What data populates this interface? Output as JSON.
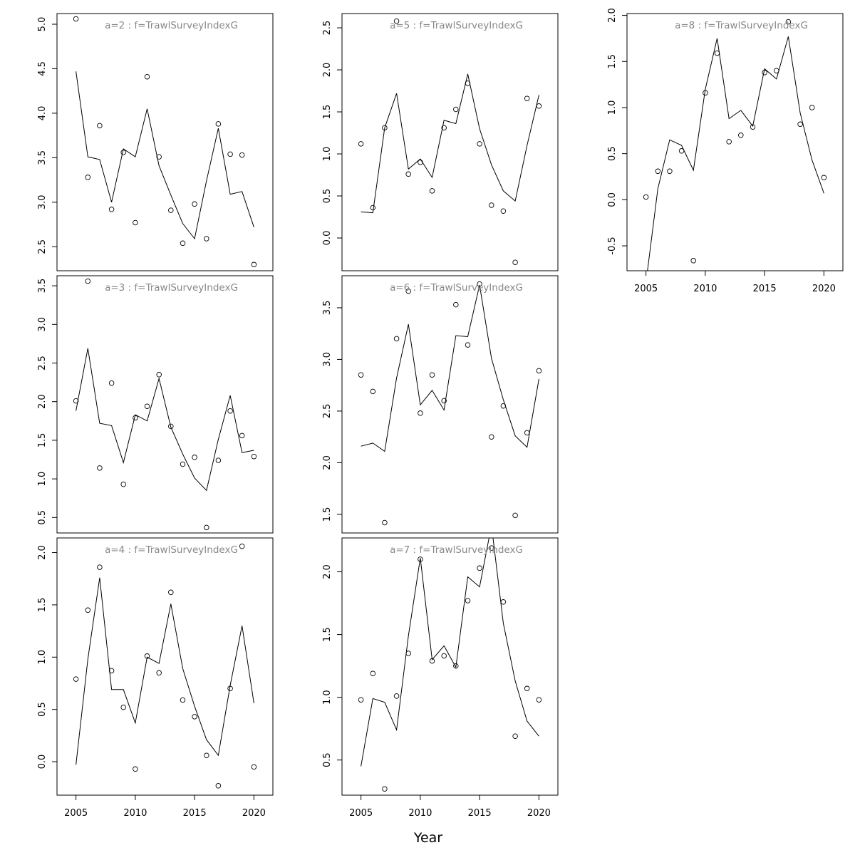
{
  "chart_data": {
    "type": "scatter",
    "xlabel": "Year",
    "xlim": [
      2003.4,
      2021.6
    ],
    "xticks": [
      2005,
      2010,
      2015,
      2020
    ],
    "years": [
      2005,
      2006,
      2007,
      2008,
      2009,
      2010,
      2011,
      2012,
      2013,
      2014,
      2015,
      2016,
      2017,
      2018,
      2019,
      2020
    ],
    "panels": [
      {
        "title": "a=2  :  f=TrawlSurveyIndexG",
        "ylim": [
          2.23,
          5.12
        ],
        "yticks": [
          "2.5",
          "3.0",
          "3.5",
          "4.0",
          "4.5",
          "5.0"
        ],
        "observed": [
          5.06,
          3.28,
          3.86,
          2.92,
          3.56,
          2.77,
          4.41,
          3.51,
          2.91,
          2.54,
          2.98,
          2.59,
          3.88,
          3.54,
          3.53,
          2.3
        ],
        "fitted": [
          4.47,
          3.51,
          3.48,
          3.0,
          3.6,
          3.51,
          4.05,
          3.41,
          3.08,
          2.76,
          2.59,
          3.24,
          3.83,
          3.09,
          3.12,
          2.72
        ]
      },
      {
        "title": "a=3  :  f=TrawlSurveyIndexG",
        "ylim": [
          0.3,
          3.63
        ],
        "yticks": [
          "0.5",
          "1.0",
          "1.5",
          "2.0",
          "2.5",
          "3.0",
          "3.5"
        ],
        "observed": [
          2.01,
          3.56,
          1.14,
          2.24,
          0.93,
          1.79,
          1.94,
          2.35,
          1.68,
          1.19,
          1.28,
          0.37,
          1.24,
          1.88,
          1.56,
          1.29
        ],
        "fitted": [
          1.88,
          2.69,
          1.72,
          1.69,
          1.21,
          1.83,
          1.75,
          2.3,
          1.67,
          1.32,
          1.01,
          0.85,
          1.51,
          2.08,
          1.34,
          1.37
        ]
      },
      {
        "title": "a=4  :  f=TrawlSurveyIndexG",
        "ylim": [
          -0.32,
          2.14
        ],
        "yticks": [
          "0.0",
          "0.5",
          "1.0",
          "1.5",
          "2.0"
        ],
        "observed": [
          0.79,
          1.45,
          1.86,
          0.87,
          0.52,
          -0.07,
          1.01,
          0.85,
          1.62,
          0.59,
          0.43,
          0.06,
          -0.23,
          0.7,
          2.06,
          -0.05
        ],
        "fitted": [
          -0.03,
          0.98,
          1.76,
          0.69,
          0.69,
          0.37,
          1.0,
          0.94,
          1.51,
          0.89,
          0.53,
          0.21,
          0.06,
          0.73,
          1.3,
          0.56
        ]
      },
      {
        "title": "a=5  :  f=TrawlSurveyIndexG",
        "ylim": [
          -0.39,
          2.67
        ],
        "yticks": [
          "0.0",
          "0.5",
          "1.0",
          "1.5",
          "2.0",
          "2.5"
        ],
        "observed": [
          1.12,
          0.36,
          1.31,
          2.58,
          0.76,
          0.9,
          0.56,
          1.31,
          1.53,
          1.84,
          1.12,
          0.39,
          0.32,
          -0.29,
          1.66,
          1.57
        ],
        "fitted": [
          0.31,
          0.3,
          1.31,
          1.72,
          0.82,
          0.94,
          0.72,
          1.4,
          1.36,
          1.95,
          1.3,
          0.87,
          0.56,
          0.44,
          1.1,
          1.7
        ]
      },
      {
        "title": "a=6  :  f=TrawlSurveyIndexG",
        "ylim": [
          1.32,
          3.81
        ],
        "yticks": [
          "1.5",
          "2.0",
          "2.5",
          "3.0",
          "3.5"
        ],
        "observed": [
          2.85,
          2.69,
          1.42,
          3.2,
          3.66,
          2.48,
          2.85,
          2.6,
          3.53,
          3.14,
          3.73,
          2.25,
          2.55,
          1.49,
          2.29,
          2.89
        ],
        "fitted": [
          2.16,
          2.19,
          2.11,
          2.82,
          3.34,
          2.56,
          2.7,
          2.51,
          3.23,
          3.22,
          3.72,
          3.01,
          2.61,
          2.26,
          2.15,
          2.81
        ]
      },
      {
        "title": "a=7  :  f=TrawlSurveyIndexG",
        "ylim": [
          0.22,
          2.27
        ],
        "yticks": [
          "0.5",
          "1.0",
          "1.5",
          "2.0"
        ],
        "observed": [
          0.98,
          1.19,
          0.27,
          1.01,
          1.35,
          2.1,
          1.29,
          1.33,
          1.25,
          1.77,
          2.03,
          2.19,
          1.76,
          0.69,
          1.07,
          0.98
        ],
        "fitted": [
          0.45,
          0.99,
          0.96,
          0.74,
          1.49,
          2.11,
          1.3,
          1.41,
          1.24,
          1.96,
          1.88,
          2.37,
          1.59,
          1.13,
          0.81,
          0.69
        ]
      },
      {
        "title": "a=8  :  f=TrawlSurveyIndexG",
        "ylim": [
          -0.77,
          2.02
        ],
        "yticks": [
          "-0.5",
          "0.0",
          "0.5",
          "1.0",
          "1.5",
          "2.0"
        ],
        "observed": [
          0.03,
          0.31,
          0.31,
          0.53,
          -0.66,
          1.16,
          1.59,
          0.63,
          0.7,
          0.79,
          1.38,
          1.4,
          1.93,
          0.82,
          1.0,
          0.24
        ],
        "fitted": [
          -0.9,
          0.12,
          0.65,
          0.59,
          0.32,
          1.2,
          1.75,
          0.88,
          0.97,
          0.8,
          1.42,
          1.31,
          1.77,
          0.94,
          0.43,
          0.07
        ]
      }
    ]
  }
}
